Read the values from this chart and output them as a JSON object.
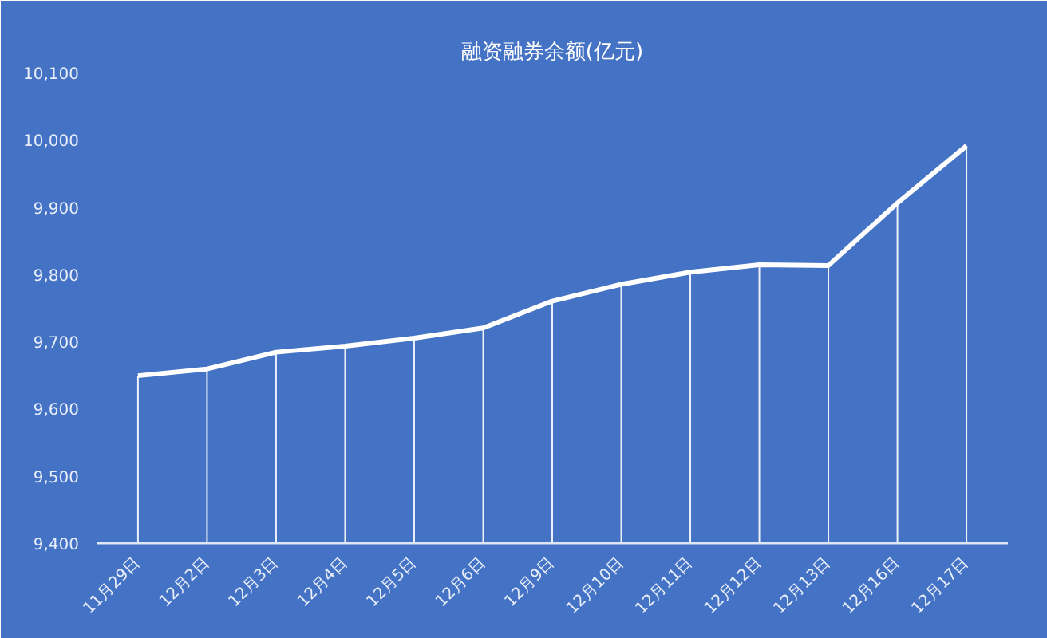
{
  "chart_data": {
    "type": "line",
    "title": "融资融券余额(亿元)",
    "categories": [
      "11月29日",
      "12月2日",
      "12月3日",
      "12月4日",
      "12月5日",
      "12月6日",
      "12月9日",
      "12月10日",
      "12月11日",
      "12月12日",
      "12月13日",
      "12月16日",
      "12月17日"
    ],
    "series": [
      {
        "color": "#ffffff",
        "values": [
          9649,
          9659,
          9684,
          9693,
          9705,
          9720,
          9760,
          9785,
          9803,
          9814,
          9813,
          9906,
          9991
        ],
        "errors": [
          [
            9400,
            9649
          ],
          [
            9400,
            9659
          ],
          [
            9400,
            9684
          ],
          [
            9400,
            9693
          ],
          [
            9400,
            9705
          ],
          [
            9400,
            9720
          ],
          [
            9400,
            9760
          ],
          [
            9400,
            9785
          ],
          [
            9400,
            9803
          ],
          [
            9400,
            9814
          ],
          [
            9400,
            9813
          ],
          [
            9400,
            9906
          ],
          [
            9400,
            9991
          ]
        ]
      }
    ],
    "ylim": [
      9400,
      10100
    ],
    "yticks": [
      {
        "value": 9400,
        "label": "9,400"
      },
      {
        "value": 9500,
        "label": "9,500"
      },
      {
        "value": 9600,
        "label": "9,600"
      },
      {
        "value": 9700,
        "label": "9,700"
      },
      {
        "value": 9800,
        "label": "9,800"
      },
      {
        "value": 9900,
        "label": "9,900"
      },
      {
        "value": 10000,
        "label": "10,000"
      },
      {
        "value": 10100,
        "label": "10,100"
      }
    ],
    "grid": false,
    "marker": "none",
    "line_style": "solid"
  }
}
